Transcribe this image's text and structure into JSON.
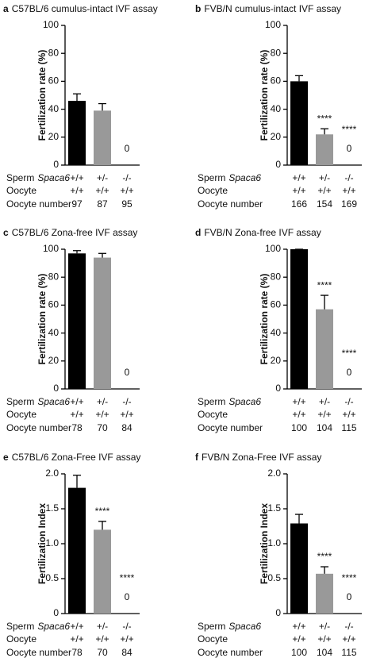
{
  "chart_data": [
    {
      "type": "bar",
      "panel": "a",
      "title": "C57BL/6 cumulus-intact IVF assay",
      "ylabel": "Fertilization rate (%)",
      "ylim": [
        0,
        100
      ],
      "yticks": [
        0,
        20,
        40,
        60,
        80,
        100
      ],
      "categories": [
        "+/+",
        "+/-",
        "-/-"
      ],
      "values": [
        46,
        39,
        0
      ],
      "errors": [
        5,
        5,
        null
      ],
      "colors": [
        "#000000",
        "#999999",
        "#ffffff"
      ],
      "significance": [
        null,
        null,
        null
      ],
      "sperm_label": "Sperm",
      "gene": "Spaca6",
      "oocyte": {
        "label": "Oocyte",
        "values": [
          "+/+",
          "+/+",
          "+/+"
        ]
      },
      "oocyte_number": {
        "label": "Oocyte number",
        "values": [
          97,
          87,
          95
        ]
      }
    },
    {
      "type": "bar",
      "panel": "b",
      "title": "FVB/N cumulus-intact IVF assay",
      "ylabel": "Fertilization rate (%)",
      "ylim": [
        0,
        100
      ],
      "yticks": [
        0,
        20,
        40,
        60,
        80,
        100
      ],
      "categories": [
        "+/+",
        "+/-",
        "-/-"
      ],
      "values": [
        60,
        22,
        0
      ],
      "errors": [
        4,
        4,
        null
      ],
      "colors": [
        "#000000",
        "#999999",
        "#ffffff"
      ],
      "significance": [
        null,
        "****",
        "****"
      ],
      "sperm_label": "Sperm",
      "gene": "Spaca6",
      "oocyte": {
        "label": "Oocyte",
        "values": [
          "+/+",
          "+/+",
          "+/+"
        ]
      },
      "oocyte_number": {
        "label": "Oocyte number",
        "values": [
          166,
          154,
          169
        ]
      }
    },
    {
      "type": "bar",
      "panel": "c",
      "title": "C57BL/6 Zona-free IVF assay",
      "ylabel": "Fertilization rate (%)",
      "ylim": [
        0,
        100
      ],
      "yticks": [
        0,
        20,
        40,
        60,
        80,
        100
      ],
      "categories": [
        "+/+",
        "+/-",
        "-/-"
      ],
      "values": [
        97,
        94,
        0
      ],
      "errors": [
        2,
        3,
        null
      ],
      "colors": [
        "#000000",
        "#999999",
        "#ffffff"
      ],
      "significance": [
        null,
        null,
        null
      ],
      "sperm_label": "Sperm",
      "gene": "Spaca6",
      "oocyte": {
        "label": "Oocyte",
        "values": [
          "+/+",
          "+/+",
          "+/+"
        ]
      },
      "oocyte_number": {
        "label": "Oocyte number",
        "values": [
          78,
          70,
          84
        ]
      }
    },
    {
      "type": "bar",
      "panel": "d",
      "title": "FVB/N Zona-free IVF assay",
      "ylabel": "Fertilization rate (%)",
      "ylim": [
        0,
        100
      ],
      "yticks": [
        0,
        20,
        40,
        60,
        80,
        100
      ],
      "categories": [
        "+/+",
        "+/-",
        "-/-"
      ],
      "values": [
        100,
        57,
        0
      ],
      "errors": [
        0,
        10,
        null
      ],
      "colors": [
        "#000000",
        "#999999",
        "#ffffff"
      ],
      "significance": [
        null,
        "****",
        "****"
      ],
      "sperm_label": "Sperm",
      "gene": "Spaca6",
      "oocyte": {
        "label": "Oocyte",
        "values": [
          "+/+",
          "+/+",
          "+/+"
        ]
      },
      "oocyte_number": {
        "label": "Oocyte number",
        "values": [
          100,
          104,
          115
        ]
      }
    },
    {
      "type": "bar",
      "panel": "e",
      "title": "C57BL/6 Zona-Free IVF assay",
      "ylabel": "Fertilization Index",
      "ylim": [
        0,
        2
      ],
      "yticks": [
        0,
        0.5,
        {
          "value": 1,
          "label": "1.0"
        },
        1.5,
        {
          "value": 2,
          "label": "2.0"
        }
      ],
      "categories": [
        "+/+",
        "+/-",
        "-/-"
      ],
      "values": [
        1.8,
        1.2,
        0
      ],
      "errors": [
        0.18,
        0.12,
        null
      ],
      "colors": [
        "#000000",
        "#999999",
        "#ffffff"
      ],
      "significance": [
        null,
        "****",
        "****"
      ],
      "sperm_label": "Sperm",
      "gene": "Spaca6",
      "oocyte": {
        "label": "Oocyte",
        "values": [
          "+/+",
          "+/+",
          "+/+"
        ]
      },
      "oocyte_number": {
        "label": "Oocyte number",
        "values": [
          78,
          70,
          84
        ]
      }
    },
    {
      "type": "bar",
      "panel": "f",
      "title": "FVB/N Zona-Free IVF assay",
      "ylabel": "Fertilization Index",
      "ylim": [
        0,
        2
      ],
      "yticks": [
        0,
        0.5,
        {
          "value": 1,
          "label": "1.0"
        },
        1.5,
        {
          "value": 2,
          "label": "2.0"
        }
      ],
      "categories": [
        "+/+",
        "+/-",
        "-/-"
      ],
      "values": [
        1.29,
        0.57,
        0
      ],
      "errors": [
        0.13,
        0.1,
        null
      ],
      "colors": [
        "#000000",
        "#999999",
        "#ffffff"
      ],
      "significance": [
        null,
        "****",
        "****"
      ],
      "sperm_label": "Sperm",
      "gene": "Spaca6",
      "oocyte": {
        "label": "Oocyte",
        "values": [
          "+/+",
          "+/+",
          "+/+"
        ]
      },
      "oocyte_number": {
        "label": "Oocyte number",
        "values": [
          100,
          104,
          115
        ]
      }
    }
  ]
}
